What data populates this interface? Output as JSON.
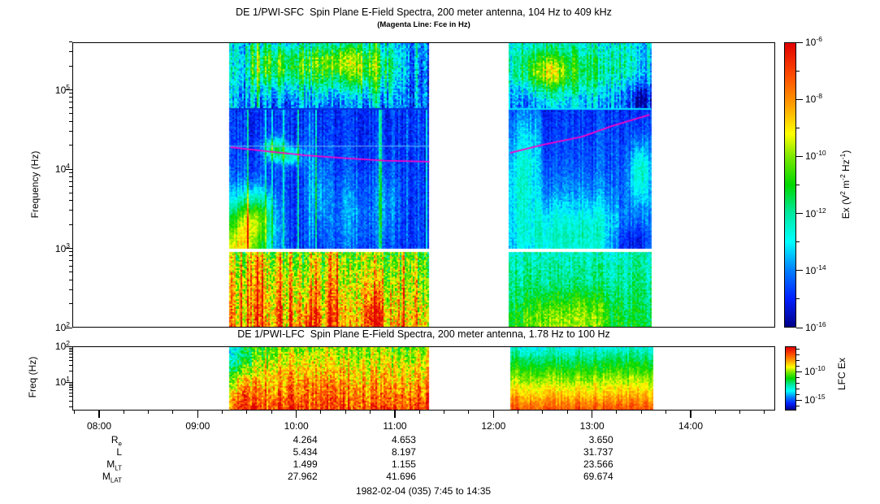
{
  "chart_data": {
    "type": "heatmap",
    "description": "Dual-panel plasma wave dynamic spectrogram: time on x-axis, log frequency on y-axis, color = electric field spectral density. Two data segments with a gap between them; white elsewhere means no data.",
    "colors": {
      "fce_line": "#ff00c8",
      "background": "#ffffff",
      "axis": "#000000",
      "band_boundary_seg2_line": "#00e0ff"
    },
    "colormap_stops": [
      {
        "v": 0.0,
        "c": "#000088"
      },
      {
        "v": 0.1,
        "c": "#0020ff"
      },
      {
        "v": 0.2,
        "c": "#0080ff"
      },
      {
        "v": 0.3,
        "c": "#00ffff"
      },
      {
        "v": 0.4,
        "c": "#00e8a0"
      },
      {
        "v": 0.5,
        "c": "#00d800"
      },
      {
        "v": 0.6,
        "c": "#7ce800"
      },
      {
        "v": 0.68,
        "c": "#ffff00"
      },
      {
        "v": 0.78,
        "c": "#ffa000"
      },
      {
        "v": 0.88,
        "c": "#ff5000"
      },
      {
        "v": 1.0,
        "c": "#e00000"
      }
    ],
    "time_axis": {
      "hour_labels": [
        "08:00",
        "09:00",
        "10:00",
        "11:00",
        "12:00",
        "13:00",
        "14:00"
      ],
      "minor_tick_minutes": 15,
      "axis_start_hour": 7.75,
      "axis_end_hour": 14.85
    },
    "panels": [
      {
        "id": "sfc",
        "title": "DE 1/PWI-SFC  Spin Plane E-Field Spectra, 200 meter antenna, 104 Hz to 409 kHz",
        "subtitle": "(Magenta Line: Fce in Hz)",
        "ylabel": "Frequency (Hz)",
        "yrange_hz": [
          100,
          409000
        ],
        "ytick_label_decades": [
          5,
          4,
          3,
          2
        ],
        "band_edges_hz": [
          100,
          900,
          1010,
          57400,
          409000
        ],
        "data_segments": [
          {
            "start": "09:19",
            "end": "11:21"
          },
          {
            "start": "12:09",
            "end": "13:36"
          }
        ],
        "colorbar": {
          "label_plain": "Ex (V^2 m^-2 Hz^-1)",
          "label_parts": [
            {
              "t": "Ex (V"
            },
            {
              "sup": "2"
            },
            {
              "t": " m"
            },
            {
              "sup": "-2"
            },
            {
              "t": " Hz"
            },
            {
              "sup": "-1"
            },
            {
              "t": ")"
            }
          ],
          "labeled_exponents": [
            -6,
            -8,
            -10,
            -12,
            -14,
            -16
          ],
          "range_exponents": [
            -6,
            -16
          ]
        },
        "fce_line": {
          "label": "Fce",
          "segments": [
            {
              "points": [
                [
                  "09:20",
                  18900
                ],
                [
                  "09:42",
                  16800
                ],
                [
                  "10:06",
                  14900
                ],
                [
                  "10:30",
                  13700
                ],
                [
                  "10:54",
                  12800
                ],
                [
                  "11:21",
                  12400
                ]
              ]
            },
            {
              "points": [
                [
                  "12:10",
                  16000
                ],
                [
                  "12:30",
                  20300
                ],
                [
                  "12:54",
                  25700
                ],
                [
                  "13:12",
                  34900
                ],
                [
                  "13:35",
                  48600
                ]
              ]
            }
          ]
        }
      },
      {
        "id": "lfc",
        "title": "DE 1/PWI-LFC  Spin Plane E-Field Spectra, 200 meter antenna, 1.78 Hz to 100 Hz",
        "ylabel": "Freq (Hz)",
        "yrange_hz": [
          1.78,
          100
        ],
        "ytick_label_decades": [
          2,
          1
        ],
        "data_segments": [
          {
            "start": "09:19",
            "end": "11:21"
          },
          {
            "start": "12:10",
            "end": "13:37"
          }
        ],
        "colorbar": {
          "label_plain": "LFC Ex",
          "labeled_exponents": [
            -10,
            -15
          ]
        }
      }
    ],
    "ephemeris_table": {
      "row_labels": [
        {
          "main": "R",
          "sub": "e"
        },
        {
          "main": "L",
          "sub": ""
        },
        {
          "main": "M",
          "sub": "LT"
        },
        {
          "main": "M",
          "sub": "LAT"
        }
      ],
      "columns": [
        {
          "time": "10:00",
          "values": [
            "4.264",
            "5.434",
            "1.499",
            "27.962"
          ]
        },
        {
          "time": "11:00",
          "values": [
            "4.653",
            "8.197",
            "1.155",
            "41.696"
          ]
        },
        {
          "time": "13:00",
          "values": [
            "3.650",
            "31.737",
            "23.566",
            "69.674"
          ]
        }
      ]
    },
    "footer": "1982-02-04 (035) 7:45 to 14:35"
  }
}
